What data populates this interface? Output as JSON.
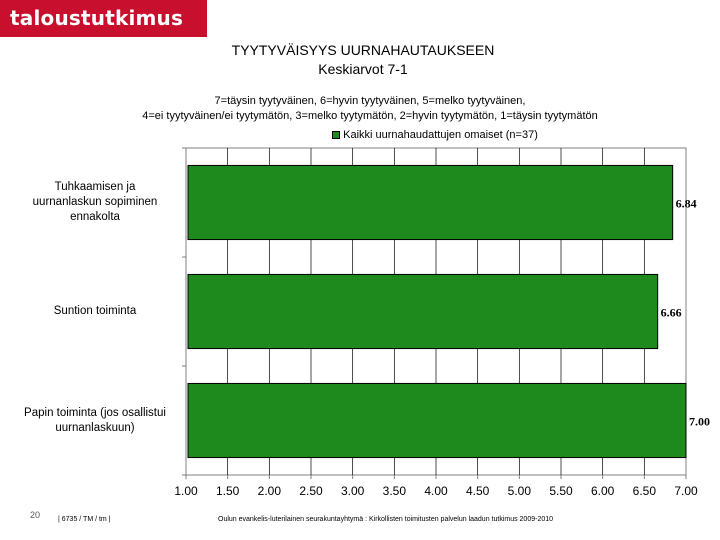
{
  "brand": "taloustutkimus oy",
  "page_number": "20",
  "footer_left": "| 6735 / TM / tm |",
  "footer_center": "Oulun evankelis-luterilainen seurakuntayhtymä : Kirkollisten toimitusten palvelun laadun tutkimus 2009-2010",
  "chart_data": {
    "type": "bar",
    "orientation": "horizontal",
    "title": "TYYTYVÄISYYS UURNAHAUTAUKSEEN",
    "subtitle": "Keskiarvot 7-1",
    "note_line1": "7=täysin tyytyväinen, 6=hyvin tyytyväinen, 5=melko tyytyväinen,",
    "note_line2": "4=ei tyytyväinen/ei tyytymätön, 3=melko tyytymätön, 2=hyvin tyytymätön, 1=täysin tyytymätön",
    "categories": [
      "Tuhkaamisen ja uurnanlaskun sopiminen ennakolta",
      "Suntion toiminta",
      "Papin toiminta (jos osallistui uurnanlaskuun)"
    ],
    "series": [
      {
        "name": "Kaikki uurnahaudattujen omaiset (n=37)",
        "values": [
          6.84,
          6.66,
          7.0
        ],
        "labels": [
          "6.84",
          "6.66",
          "7.00"
        ],
        "color": "#1e8a1e"
      }
    ],
    "xlim": [
      1,
      7
    ],
    "x_ticks": [
      "1.00",
      "1.50",
      "2.00",
      "2.50",
      "3.00",
      "3.50",
      "4.00",
      "4.50",
      "5.00",
      "5.50",
      "6.00",
      "6.50",
      "7.00"
    ],
    "grid": true,
    "legend_position": "top"
  }
}
